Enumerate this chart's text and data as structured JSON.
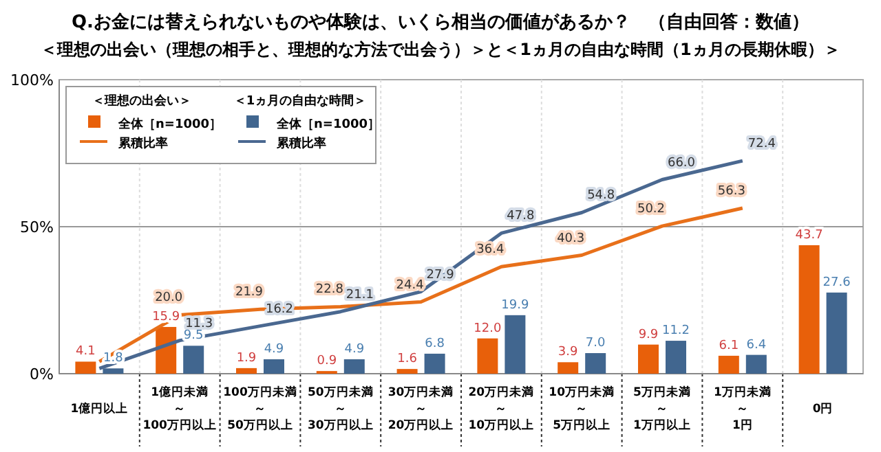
{
  "chart_data": {
    "type": "bar",
    "title": "Q.お金には替えられないものや体験は、いくら相当の価値があるか？　（自由回答：数値）",
    "subtitle": "＜理想の出会い（理想の相手と、理想的な方法で出会う）＞と＜1ヵ月の自由な時間（1ヵ月の長期休暇）＞",
    "legend_title": [
      "＜理想の出会い＞",
      "＜1ヵ月の自由な時間＞"
    ],
    "categories": [
      "1億円以上",
      "1億円未満～100万円以上",
      "100万円未満～50万円以上",
      "50万円未満～30万円以上",
      "30万円未満～20万円以上",
      "20万円未満～10万円以上",
      "10万円未満～5万円以上",
      "5万円未満～1万円以上",
      "1万円未満～1円",
      "0円"
    ],
    "series": [
      {
        "name": "全体［n=1000］",
        "color": "#e8600a",
        "values": [
          4.1,
          15.9,
          1.9,
          0.9,
          1.6,
          12.0,
          3.9,
          9.9,
          6.1,
          43.7
        ],
        "value_labels": [
          "4.1",
          "15.9",
          "1.9",
          "0.9",
          "1.6",
          "12.0",
          "3.9",
          "9.9",
          "6.1",
          "43.7"
        ]
      },
      {
        "name": "累積比率",
        "type": "line",
        "color": "#e8701a",
        "values": [
          4.1,
          20.0,
          21.9,
          22.8,
          24.4,
          36.4,
          40.3,
          50.2,
          56.3,
          null
        ],
        "value_labels": [
          null,
          "20.0",
          "21.9",
          "22.8",
          "24.4",
          "36.4",
          "40.3",
          "50.2",
          "56.3",
          null
        ]
      },
      {
        "name": "全体［n=1000］",
        "color": "#41668f",
        "values": [
          1.8,
          9.5,
          4.9,
          4.9,
          6.8,
          19.9,
          7.0,
          11.2,
          6.4,
          27.6
        ],
        "value_labels": [
          "1.8",
          "9.5",
          "4.9",
          "4.9",
          "6.8",
          "19.9",
          "7.0",
          "11.2",
          "6.4",
          "27.6"
        ]
      },
      {
        "name": "累積比率",
        "type": "line",
        "color": "#4a6890",
        "values": [
          1.8,
          11.3,
          16.2,
          21.1,
          27.9,
          47.8,
          54.8,
          66.0,
          72.4,
          null
        ],
        "value_labels": [
          null,
          "11.3",
          "16.2",
          "21.1",
          "27.9",
          "47.8",
          "54.8",
          "66.0",
          "72.4",
          null
        ]
      }
    ],
    "ylim": [
      0,
      100
    ],
    "yticks": [
      {
        "value": 0,
        "label": "0%"
      },
      {
        "value": 50,
        "label": "50%"
      },
      {
        "value": 100,
        "label": "100%"
      }
    ],
    "ref_lines": [
      {
        "axis": "y",
        "value": 50,
        "color": "#999999"
      }
    ],
    "legend": "top left"
  }
}
